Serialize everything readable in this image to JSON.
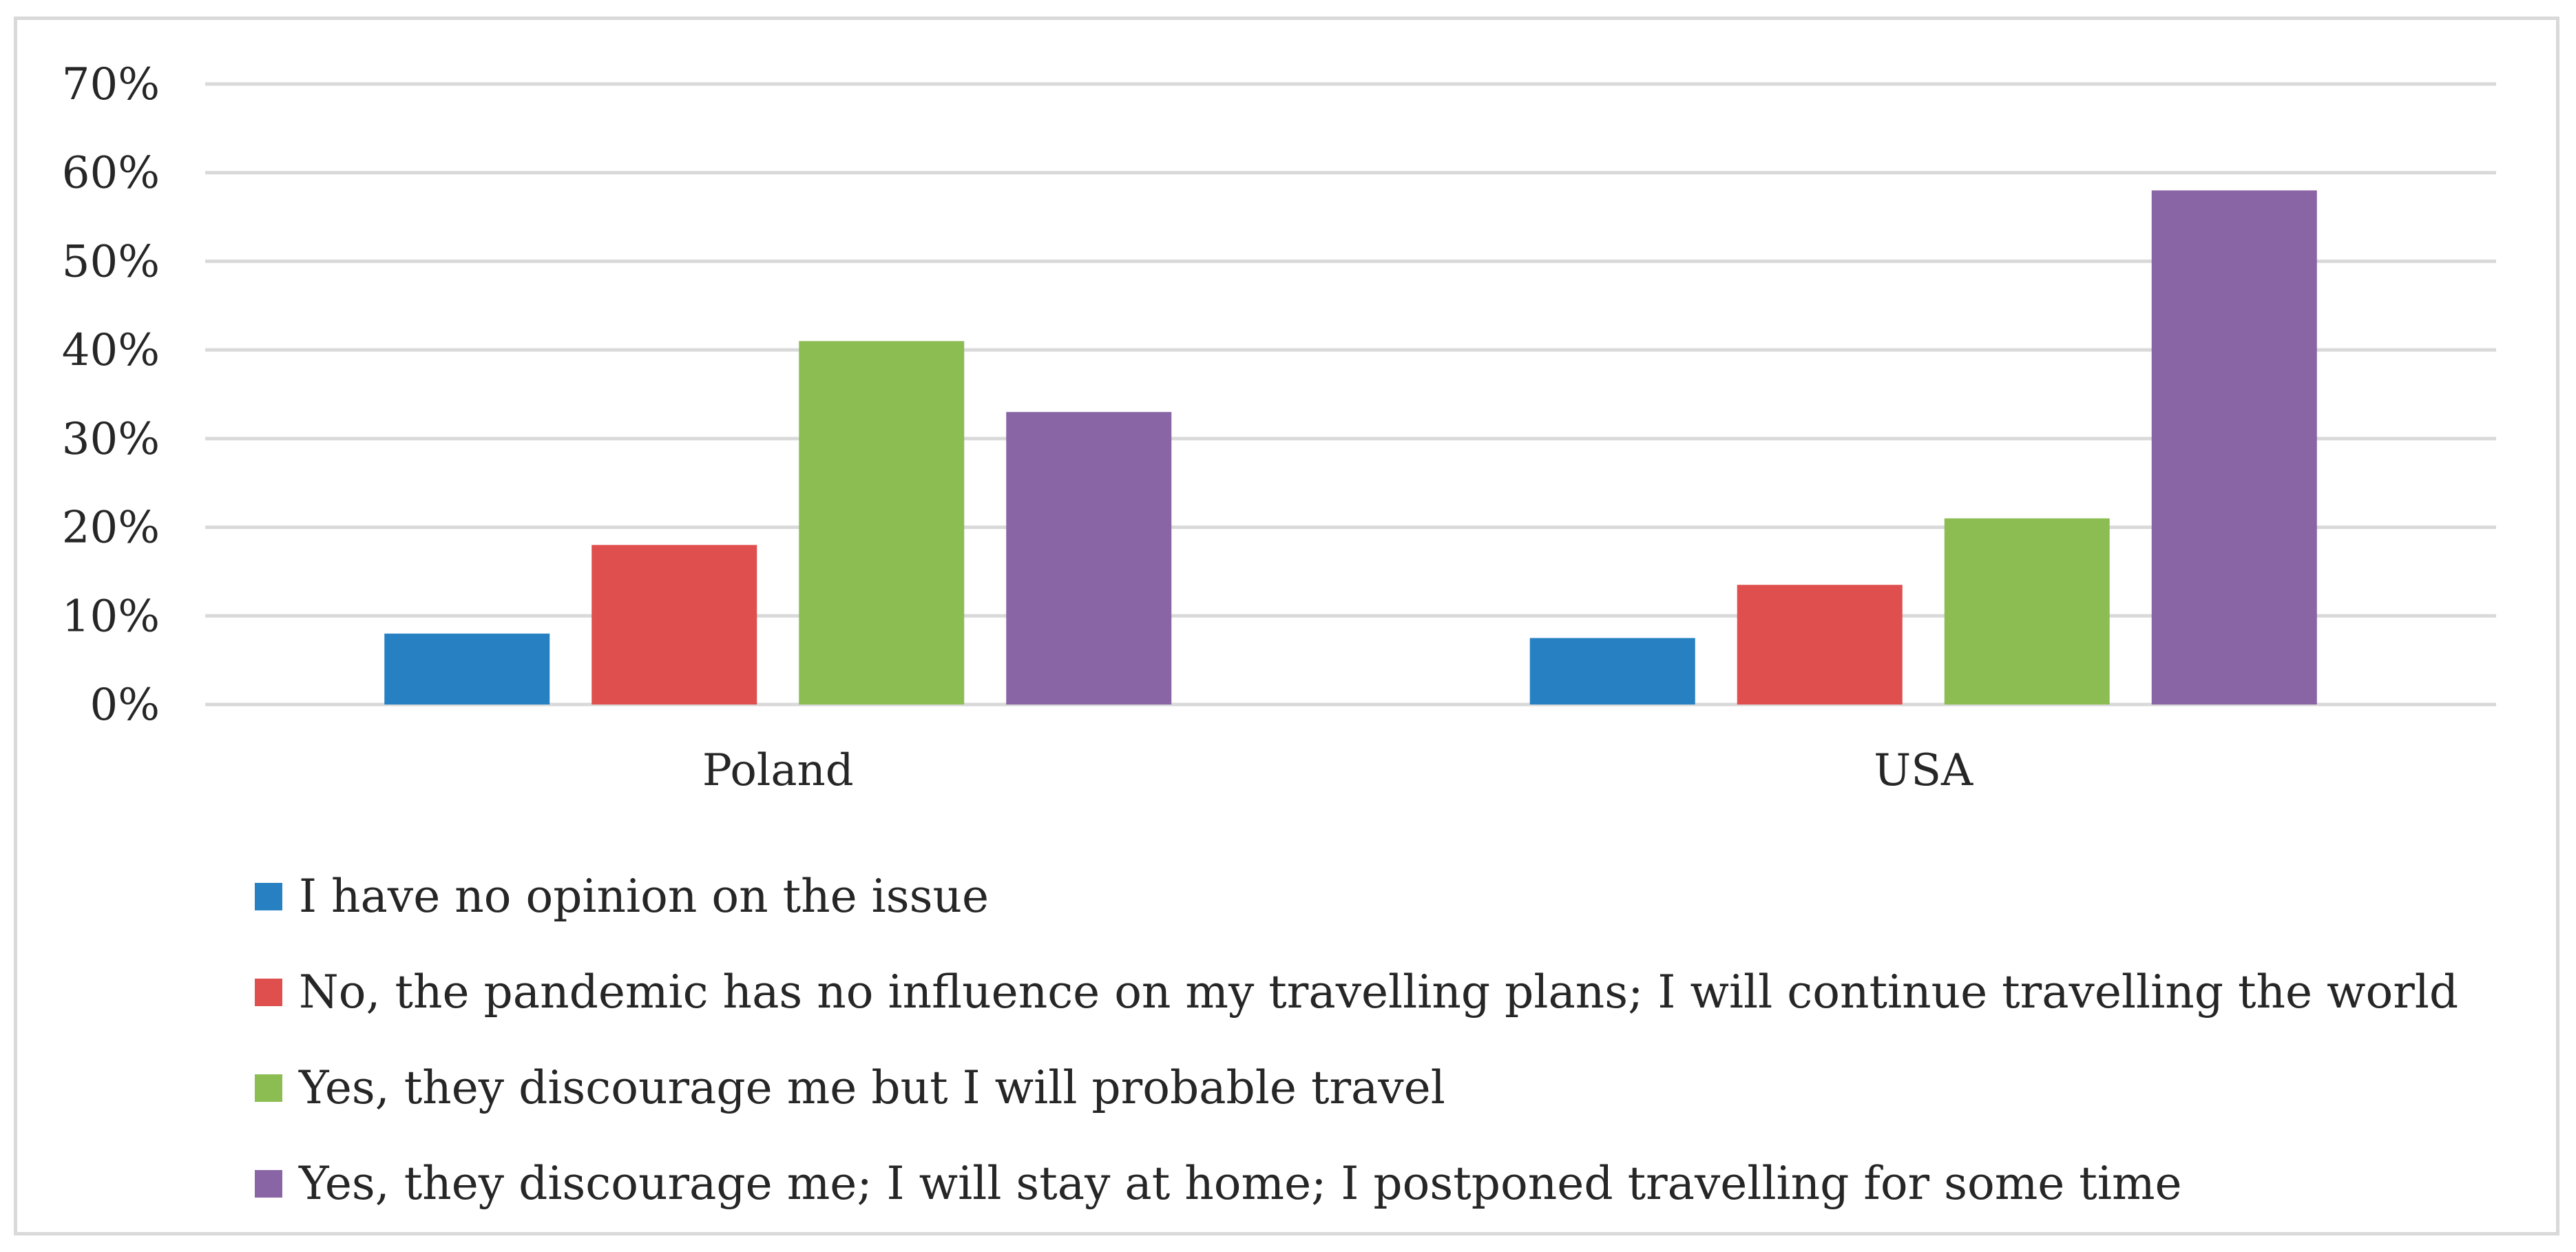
{
  "chart_data": {
    "type": "bar",
    "categories": [
      "Poland",
      "USA"
    ],
    "series": [
      {
        "name": "I have no opinion on the issue",
        "color": "#2680c2",
        "values": [
          8,
          7.5
        ]
      },
      {
        "name": "No, the pandemic has no influence on my travelling plans; I will continue travelling the world",
        "color": "#de4f4d",
        "values": [
          18,
          13.5
        ]
      },
      {
        "name": "Yes, they discourage me but I will probable travel",
        "color": "#8cbd52",
        "values": [
          41,
          21
        ]
      },
      {
        "name": "Yes, they discourage me; I will stay at home; I postponed travelling for some time",
        "color": "#8a65a6",
        "values": [
          33,
          58
        ]
      }
    ],
    "ylim": [
      0,
      70
    ],
    "yticks": [
      0,
      10,
      20,
      30,
      40,
      50,
      60,
      70
    ],
    "ytick_suffix": "%",
    "grid": true,
    "legend_position": "bottom",
    "title": "",
    "xlabel": "",
    "ylabel": ""
  }
}
